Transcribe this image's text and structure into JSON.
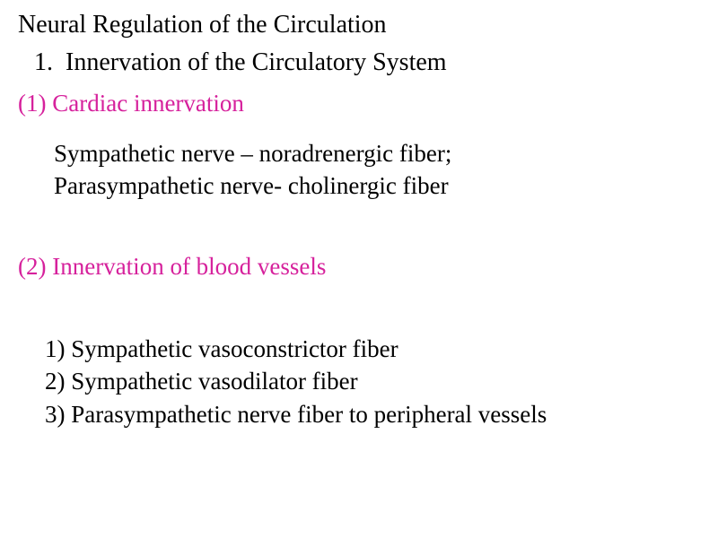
{
  "colors": {
    "text": "#000000",
    "accent": "#d6219c",
    "background": "#ffffff"
  },
  "typography": {
    "family": "Times New Roman",
    "title_size_pt": 28,
    "body_size_pt": 27
  },
  "title": "Neural Regulation of the Circulation",
  "section1": {
    "number": "1.",
    "label": "Innervation of the Circulatory System"
  },
  "sub1": {
    "marker": "(1)",
    "label": "Cardiac innervation",
    "body_line1": "Sympathetic nerve – noradrenergic fiber;",
    "body_line2": "Parasympathetic nerve- cholinergic fiber"
  },
  "sub2": {
    "marker": "(2)",
    "label": "Innervation of blood vessels",
    "items": [
      "1) Sympathetic vasoconstrictor fiber",
      "2) Sympathetic vasodilator fiber",
      "3) Parasympathetic nerve fiber to peripheral vessels"
    ]
  }
}
